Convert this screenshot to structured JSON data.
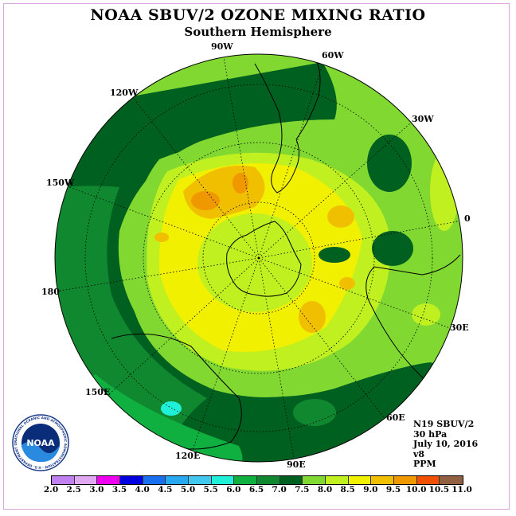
{
  "title": "NOAA SBUV/2 OZONE MIXING RATIO",
  "subtitle": "Southern Hemisphere",
  "longitude_labels": [
    "90W",
    "60W",
    "120W",
    "30W",
    "150W",
    "0",
    "180",
    "30E",
    "150E",
    "60E",
    "120E",
    "90E"
  ],
  "info": {
    "satellite": "N19 SBUV/2",
    "level": "30 hPa",
    "date": "July 10, 2016",
    "version": "v8",
    "units": "PPM"
  },
  "logo": {
    "text": "NOAA",
    "ring_text": "NATIONAL OCEANIC AND ATMOSPHERIC ADMINISTRATION · U.S. DEPARTMENT OF COMMERCE"
  },
  "colorbar": {
    "ticks": [
      "2.0",
      "2.5",
      "3.0",
      "3.5",
      "4.0",
      "4.5",
      "5.0",
      "5.5",
      "6.0",
      "6.5",
      "7.0",
      "7.5",
      "8.0",
      "8.5",
      "9.0",
      "9.5",
      "10.0",
      "10.5",
      "11.0"
    ],
    "colors": [
      "#c080f0",
      "#e0a8f0",
      "#f000f0",
      "#0000e0",
      "#1870f0",
      "#28a8f0",
      "#40c8f0",
      "#20f0d8",
      "#10b040",
      "#108830",
      "#006020",
      "#80d830",
      "#c0f020",
      "#f0f000",
      "#f0c000",
      "#f09800",
      "#f05000",
      "#f00000",
      "#906040"
    ]
  }
}
